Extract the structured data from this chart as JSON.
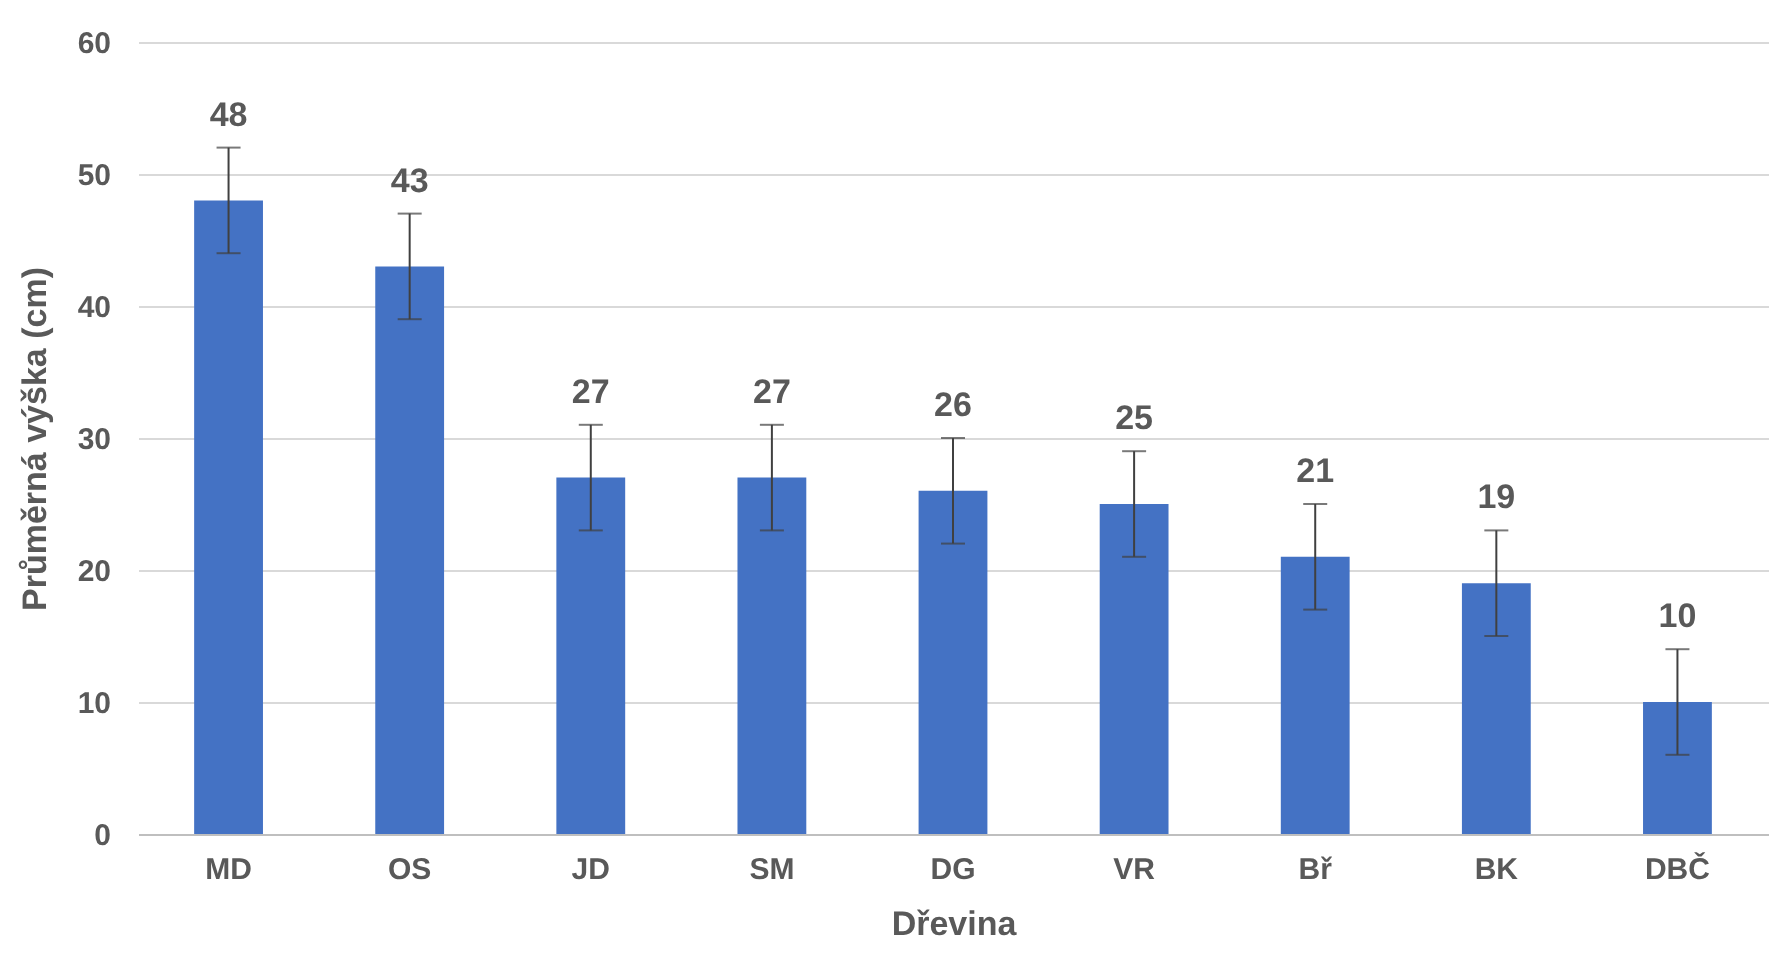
{
  "chart_data": {
    "type": "bar",
    "xlabel": "Dřevina",
    "ylabel": "Průměrná výška (cm)",
    "categories": [
      "MD",
      "OS",
      "JD",
      "SM",
      "DG",
      "VR",
      "Bř",
      "BK",
      "DBČ"
    ],
    "values": [
      48,
      43,
      27,
      27,
      26,
      25,
      21,
      19,
      10
    ],
    "errors": [
      4,
      4,
      4,
      4,
      4,
      4,
      4,
      4,
      4
    ],
    "color": "#4472c4",
    "ylim": [
      0,
      60
    ],
    "yticks": [
      0,
      10,
      20,
      30,
      40,
      50,
      60
    ],
    "grid": "y",
    "data_labels": true
  }
}
